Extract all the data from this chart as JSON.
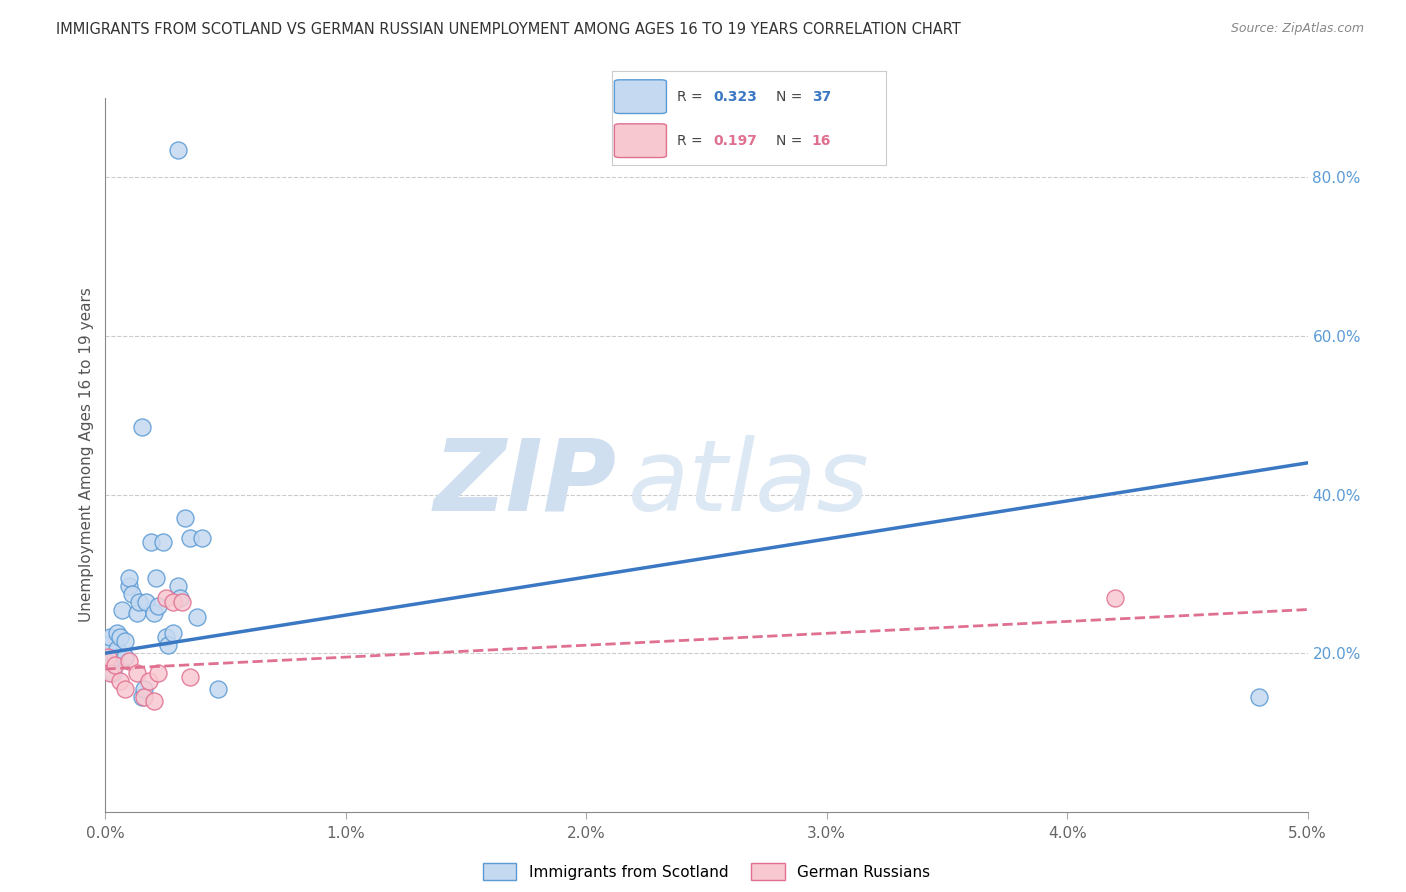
{
  "title": "IMMIGRANTS FROM SCOTLAND VS GERMAN RUSSIAN UNEMPLOYMENT AMONG AGES 16 TO 19 YEARS CORRELATION CHART",
  "source": "Source: ZipAtlas.com",
  "ylabel": "Unemployment Among Ages 16 to 19 years",
  "xlim": [
    0.0,
    0.05
  ],
  "ylim": [
    0.0,
    0.9
  ],
  "xticks": [
    0.0,
    0.01,
    0.02,
    0.03,
    0.04,
    0.05
  ],
  "xtick_labels": [
    "0.0%",
    "1.0%",
    "2.0%",
    "3.0%",
    "4.0%",
    "5.0%"
  ],
  "yticks_right": [
    0.2,
    0.4,
    0.6,
    0.8
  ],
  "ytick_labels_right": [
    "20.0%",
    "40.0%",
    "60.0%",
    "80.0%"
  ],
  "legend_blue_r": "0.323",
  "legend_blue_n": "37",
  "legend_pink_r": "0.197",
  "legend_pink_n": "16",
  "legend_label_blue": "Immigrants from Scotland",
  "legend_label_pink": "German Russians",
  "blue_fill": "#c5d9f0",
  "blue_edge": "#5b9bd5",
  "pink_fill": "#f8c8d0",
  "pink_edge": "#e07090",
  "blue_line": "#3b78c4",
  "pink_line": "#e07090",
  "watermark_zip": "ZIP",
  "watermark_atlas": "atlas",
  "scotland_x": [
    0.0001,
    0.0002,
    0.0002,
    0.0003,
    0.0004,
    0.0005,
    0.0005,
    0.0006,
    0.0007,
    0.0008,
    0.0008,
    0.001,
    0.001,
    0.0011,
    0.0013,
    0.0014,
    0.0015,
    0.0016,
    0.0017,
    0.0019,
    0.002,
    0.0021,
    0.0022,
    0.0024,
    0.0025,
    0.0026,
    0.0028,
    0.003,
    0.0031,
    0.0033,
    0.0035,
    0.0038,
    0.004,
    0.0015,
    0.003,
    0.0047,
    0.048
  ],
  "scotland_y": [
    0.21,
    0.19,
    0.22,
    0.175,
    0.195,
    0.205,
    0.225,
    0.22,
    0.255,
    0.195,
    0.215,
    0.285,
    0.295,
    0.275,
    0.25,
    0.265,
    0.145,
    0.155,
    0.265,
    0.34,
    0.25,
    0.295,
    0.26,
    0.34,
    0.22,
    0.21,
    0.225,
    0.285,
    0.27,
    0.37,
    0.345,
    0.245,
    0.345,
    0.485,
    0.835,
    0.155,
    0.145
  ],
  "german_x": [
    0.0001,
    0.0002,
    0.0004,
    0.0006,
    0.0008,
    0.001,
    0.0013,
    0.0016,
    0.0018,
    0.002,
    0.0022,
    0.0025,
    0.0028,
    0.0032,
    0.0035,
    0.042
  ],
  "german_y": [
    0.195,
    0.175,
    0.185,
    0.165,
    0.155,
    0.19,
    0.175,
    0.145,
    0.165,
    0.14,
    0.175,
    0.27,
    0.265,
    0.265,
    0.17,
    0.27
  ],
  "blue_line_x0": 0.0,
  "blue_line_y0": 0.2,
  "blue_line_x1": 0.05,
  "blue_line_y1": 0.44,
  "pink_line_x0": 0.0,
  "pink_line_y0": 0.18,
  "pink_line_x1": 0.05,
  "pink_line_y1": 0.255
}
